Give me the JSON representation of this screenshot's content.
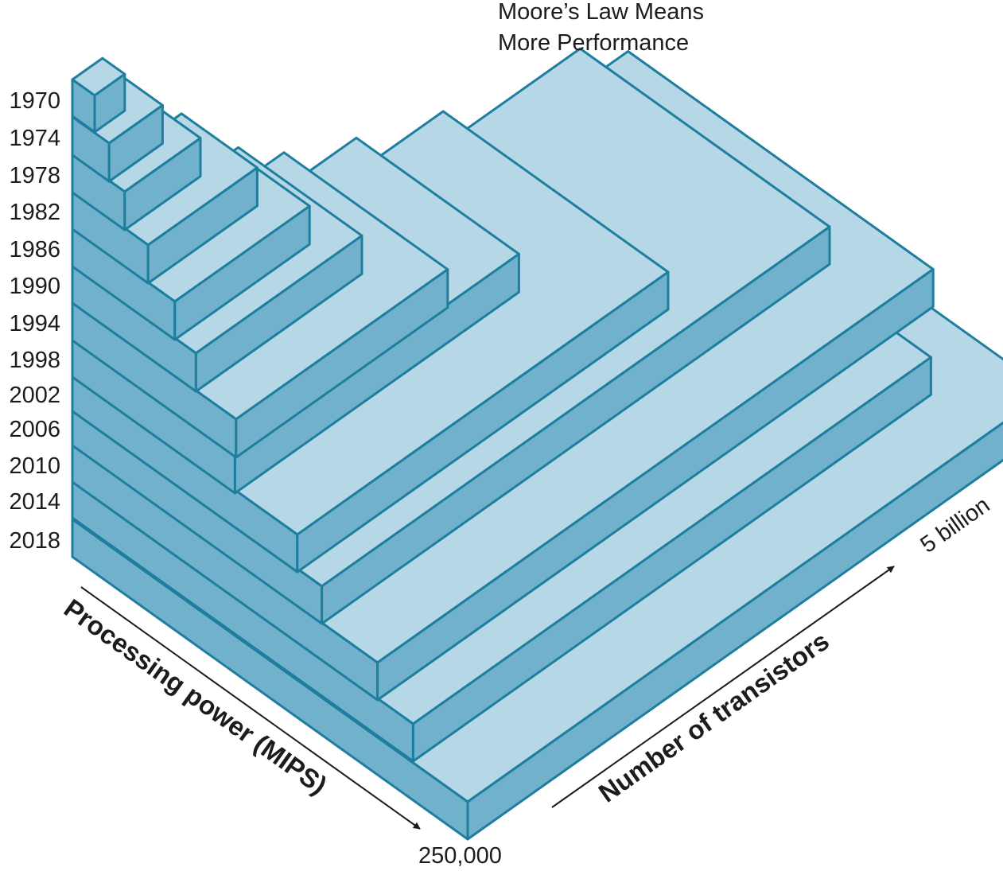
{
  "title": [
    "Moore’s Law Means",
    "More Performance"
  ],
  "years": [
    "1970",
    "1974",
    "1978",
    "1982",
    "1986",
    "1990",
    "1994",
    "1998",
    "2002",
    "2006",
    "2010",
    "2014",
    "2018"
  ],
  "axes": {
    "processing_power_label": "Processing power (MIPS)",
    "processing_power_max": "250,000",
    "transistors_label": "Number of transistors",
    "transistors_max": "5 billion"
  },
  "colors": {
    "top_face": "#b6d7e6",
    "side_face": "#72b1cc",
    "edge": "#1e7e9e",
    "text": "#1c1c1c"
  }
}
